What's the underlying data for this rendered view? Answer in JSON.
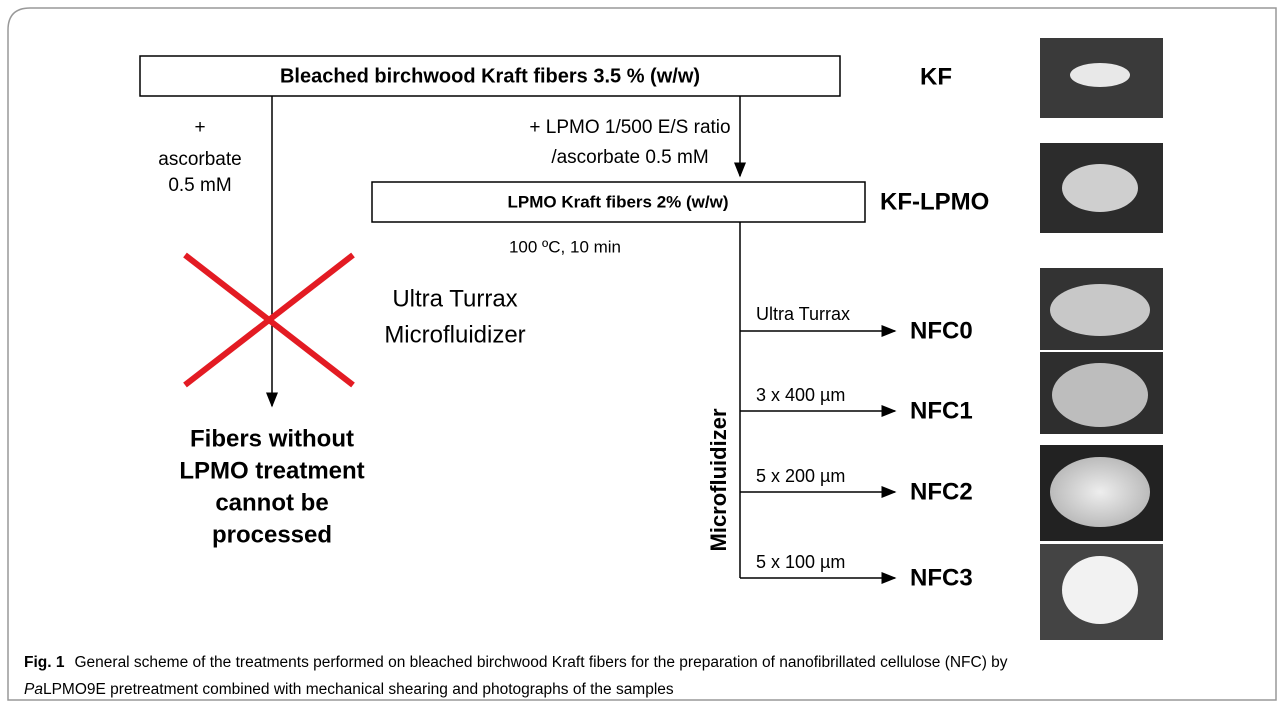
{
  "figure": {
    "top_box": "Bleached birchwood Kraft fibers 3.5 % (w/w)",
    "left_branch": [
      "+",
      "ascorbate",
      "0.5 mM"
    ],
    "right_branch": [
      "+ LPMO 1/500 E/S ratio",
      "/ascorbate 0.5 mM"
    ],
    "middle_box": "LPMO Kraft fibers 2% (w/w)",
    "heat": "100 ºC, 10 min",
    "crossed": [
      "Ultra Turrax",
      "Microfluidizer"
    ],
    "fail": [
      "Fibers without",
      "LPMO treatment",
      "cannot be",
      "processed"
    ],
    "microfluidizer": "Microfluidizer",
    "kf": "KF",
    "kf_lpmo": "KF-LPMO",
    "branches": [
      {
        "treatment": "Ultra Turrax",
        "sample": "NFC0"
      },
      {
        "treatment": "3 x 400 µm",
        "sample": "NFC1"
      },
      {
        "treatment": "5 x 200 µm",
        "sample": "NFC2"
      },
      {
        "treatment": "5 x 100 µm",
        "sample": "NFC3"
      }
    ]
  },
  "caption": {
    "label": "Fig. 1",
    "line1": "General scheme of the treatments performed on bleached birchwood Kraft fibers for the preparation of nanofibrillated cellulose (NFC) by",
    "italic": "Pa",
    "line2": "LPMO9E pretreatment combined with mechanical shearing and photographs of the samples"
  }
}
